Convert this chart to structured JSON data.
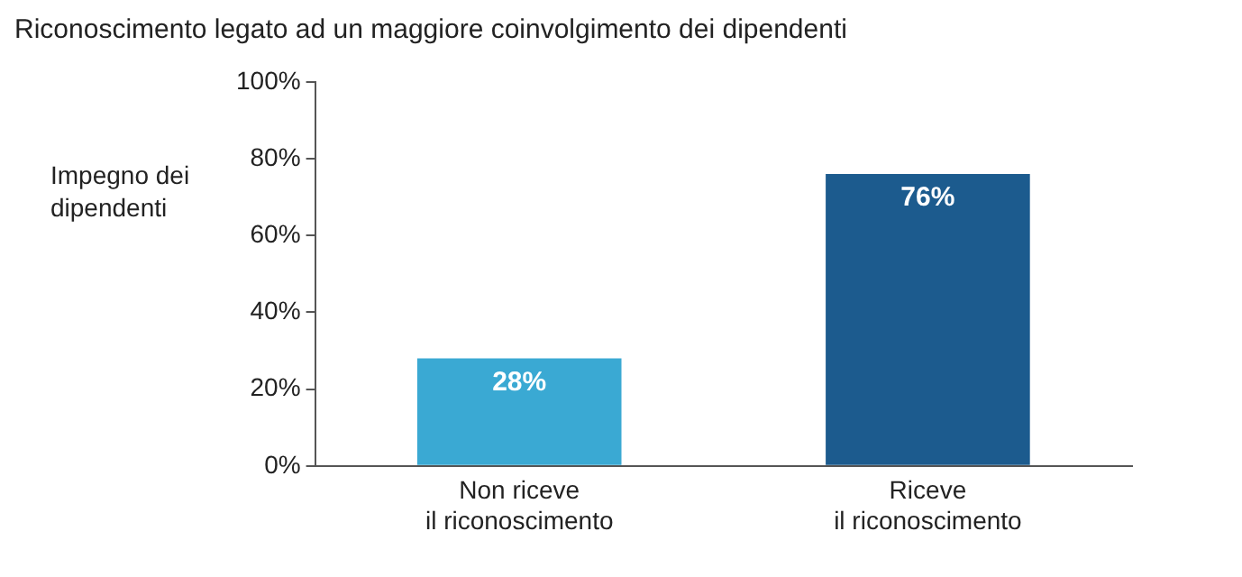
{
  "chart_data": {
    "type": "bar",
    "title": "Riconoscimento legato ad un maggiore coinvolgimento dei dipendenti",
    "ylabel": "Impegno dei dipendenti",
    "categories": [
      "Non riceve il riconoscimento",
      "Riceve il riconoscimento"
    ],
    "values": [
      28,
      76
    ],
    "colors": [
      "#3aa9d3",
      "#1c5b8e"
    ],
    "ylim": [
      0,
      100
    ],
    "yticks": [
      {
        "value": 0,
        "label": "0%"
      },
      {
        "value": 20,
        "label": "20%"
      },
      {
        "value": 40,
        "label": "40%"
      },
      {
        "value": 60,
        "label": "60%"
      },
      {
        "value": 80,
        "label": "80%"
      },
      {
        "value": 100,
        "label": "100%"
      }
    ],
    "value_labels": [
      "28%",
      "76%"
    ],
    "grid": false,
    "legend": false
  }
}
